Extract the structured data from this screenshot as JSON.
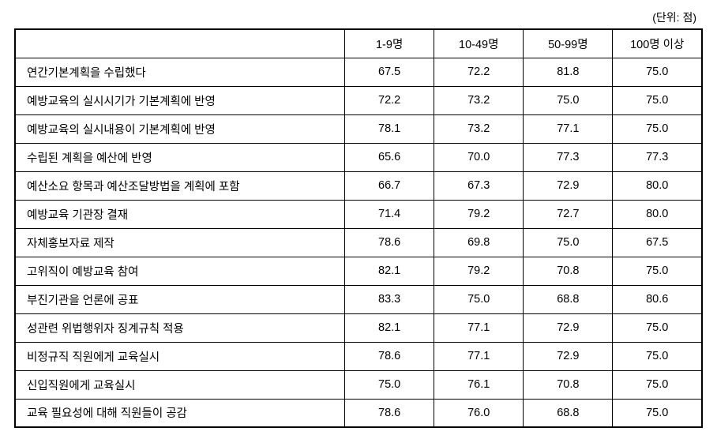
{
  "unit_label": "(단위: 점)",
  "columns": [
    "1-9명",
    "10-49명",
    "50-99명",
    "100명 이상"
  ],
  "rows": [
    {
      "label": "연간기본계획을 수립했다",
      "values": [
        "67.5",
        "72.2",
        "81.8",
        "75.0"
      ]
    },
    {
      "label": "예방교육의 실시시기가 기본계획에 반영",
      "values": [
        "72.2",
        "73.2",
        "75.0",
        "75.0"
      ]
    },
    {
      "label": "예방교육의 실시내용이 기본계획에 반영",
      "values": [
        "78.1",
        "73.2",
        "77.1",
        "75.0"
      ]
    },
    {
      "label": "수립된 계획을 예산에 반영",
      "values": [
        "65.6",
        "70.0",
        "77.3",
        "77.3"
      ]
    },
    {
      "label": "예산소요 항목과 예산조달방법을 계획에 포함",
      "values": [
        "66.7",
        "67.3",
        "72.9",
        "80.0"
      ]
    },
    {
      "label": "예방교육 기관장 결재",
      "values": [
        "71.4",
        "79.2",
        "72.7",
        "80.0"
      ]
    },
    {
      "label": "자체홍보자료 제작",
      "values": [
        "78.6",
        "69.8",
        "75.0",
        "67.5"
      ]
    },
    {
      "label": "고위직이 예방교육 참여",
      "values": [
        "82.1",
        "79.2",
        "70.8",
        "75.0"
      ]
    },
    {
      "label": "부진기관을 언론에 공표",
      "values": [
        "83.3",
        "75.0",
        "68.8",
        "80.6"
      ]
    },
    {
      "label": "성관련 위법행위자 징계규칙 적용",
      "values": [
        "82.1",
        "77.1",
        "72.9",
        "75.0"
      ]
    },
    {
      "label": "비정규직 직원에게 교육실시",
      "values": [
        "78.6",
        "77.1",
        "72.9",
        "75.0"
      ]
    },
    {
      "label": "신입직원에게 교육실시",
      "values": [
        "75.0",
        "76.1",
        "70.8",
        "75.0"
      ]
    },
    {
      "label": "교육 필요성에 대해 직원들이 공감",
      "values": [
        "78.6",
        "76.0",
        "68.8",
        "75.0"
      ]
    }
  ]
}
